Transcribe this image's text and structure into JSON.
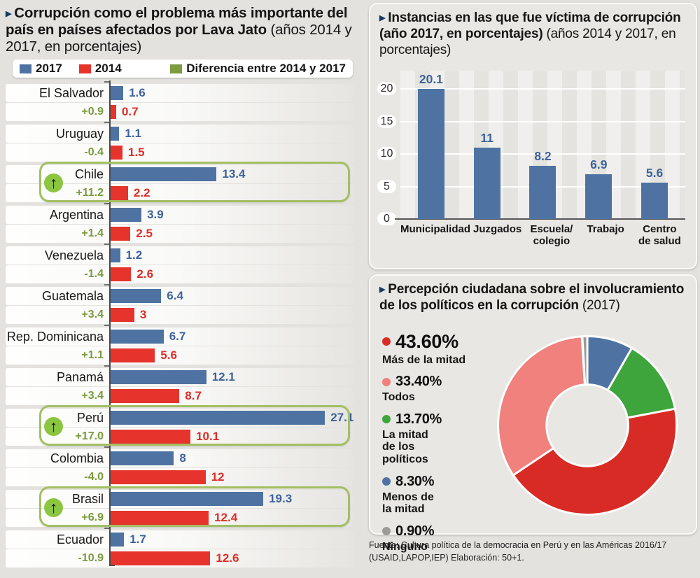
{
  "left_chart": {
    "title_bold": "Corrupción como el problema más importante del país en países afectados por Lava Jato",
    "title_light": "(años 2014 y 2017, en porcentajes)",
    "legend": [
      {
        "label": "2017",
        "color": "#4e73a2"
      },
      {
        "label": "2014",
        "color": "#e6332b"
      },
      {
        "label": "Diferencia entre 2014 y 2017",
        "color": "#7d9b3f"
      }
    ]
  },
  "victim_chart": {
    "title_bold": "Instancias en las que fue víctima de corrupción (año 2017, en porcentajes)",
    "title_light": "(años 2014 y 2017, en porcentajes)"
  },
  "perception_chart": {
    "title_bold": "Percepción ciudadana sobre el involucramiento de los políticos en la corrupción",
    "title_light": "(2017)"
  },
  "footer": {
    "line1": "Fuente: Cultura política de la democracia en Perú y en las Américas 2016/17",
    "line2": "(USAID,LAPOP,IEP) Elaboración: 50+1."
  },
  "chart_data": [
    {
      "id": "lavajato",
      "type": "bar",
      "orientation": "horizontal",
      "title": "Corrupción como el problema más importante del país en países afectados por Lava Jato (años 2014 y 2017, en porcentajes)",
      "series_names": [
        "2017",
        "2014"
      ],
      "colors": {
        "2017": "#4e73a2",
        "2014": "#e6332b",
        "diff": "#7a9a3d"
      },
      "highlighted": [
        "Chile",
        "Perú",
        "Brasil"
      ],
      "rows": [
        {
          "country": "El Salvador",
          "y2017": 1.6,
          "y2014": 0.7,
          "diff": "+0.9",
          "highlight": false
        },
        {
          "country": "Uruguay",
          "y2017": 1.1,
          "y2014": 1.5,
          "diff": "-0.4",
          "highlight": false
        },
        {
          "country": "Chile",
          "y2017": 13.4,
          "y2014": 2.2,
          "diff": "+11.2",
          "highlight": true
        },
        {
          "country": "Argentina",
          "y2017": 3.9,
          "y2014": 2.5,
          "diff": "+1.4",
          "highlight": false
        },
        {
          "country": "Venezuela",
          "y2017": 1.2,
          "y2014": 2.6,
          "diff": "-1.4",
          "highlight": false
        },
        {
          "country": "Guatemala",
          "y2017": 6.4,
          "y2014": 3,
          "diff": "+3.4",
          "highlight": false
        },
        {
          "country": "Rep. Dominicana",
          "y2017": 6.7,
          "y2014": 5.6,
          "diff": "+1.1",
          "highlight": false
        },
        {
          "country": "Panamá",
          "y2017": 12.1,
          "y2014": 8.7,
          "diff": "+3.4",
          "highlight": false
        },
        {
          "country": "Perú",
          "y2017": 27.1,
          "y2014": 10.1,
          "diff": "+17.0",
          "highlight": true
        },
        {
          "country": "Colombia",
          "y2017": 8,
          "y2014": 12,
          "diff": "-4.0",
          "highlight": false
        },
        {
          "country": "Brasil",
          "y2017": 19.3,
          "y2014": 12.4,
          "diff": "+6.9",
          "highlight": true
        },
        {
          "country": "Ecuador",
          "y2017": 1.7,
          "y2014": 12.6,
          "diff": "-10.9",
          "highlight": false
        }
      ]
    },
    {
      "id": "victim",
      "type": "bar",
      "title": "Instancias en las que fue víctima de corrupción (año 2017, en porcentajes)",
      "categories": [
        "Municipalidad",
        "Juzgados",
        "Escuela/\ncolegio",
        "Trabajo",
        "Centro\nde salud"
      ],
      "values": [
        20.1,
        11,
        8.2,
        6.9,
        5.6
      ],
      "bar_color": "#4e73a2",
      "ylim": [
        0,
        21.5
      ],
      "yticks": [
        0,
        5,
        10,
        15,
        20
      ],
      "grid": true
    },
    {
      "id": "perception",
      "type": "pie",
      "title": "Percepción ciudadana sobre el involucramiento de los políticos en la corrupción (2017)",
      "slices": [
        {
          "label": "Más de la mitad",
          "pct": 43.6,
          "display": "43.60%",
          "color": "#d92b25"
        },
        {
          "label": "Todos",
          "pct": 33.4,
          "display": "33.40%",
          "color": "#f0817d"
        },
        {
          "label": "La mitad de los políticos",
          "pct": 13.7,
          "display": "13.70%",
          "color": "#3da53c"
        },
        {
          "label": "Menos de la mitad",
          "pct": 8.3,
          "display": "8.30%",
          "color": "#4e73a2"
        },
        {
          "label": "Ninguno",
          "pct": 0.9,
          "display": "0.90%",
          "color": "#9c9b97"
        }
      ],
      "draw_order_clockwise_from_top": [
        4,
        3,
        2,
        0,
        1
      ],
      "donut_hole": true,
      "legend_position": "left"
    }
  ]
}
